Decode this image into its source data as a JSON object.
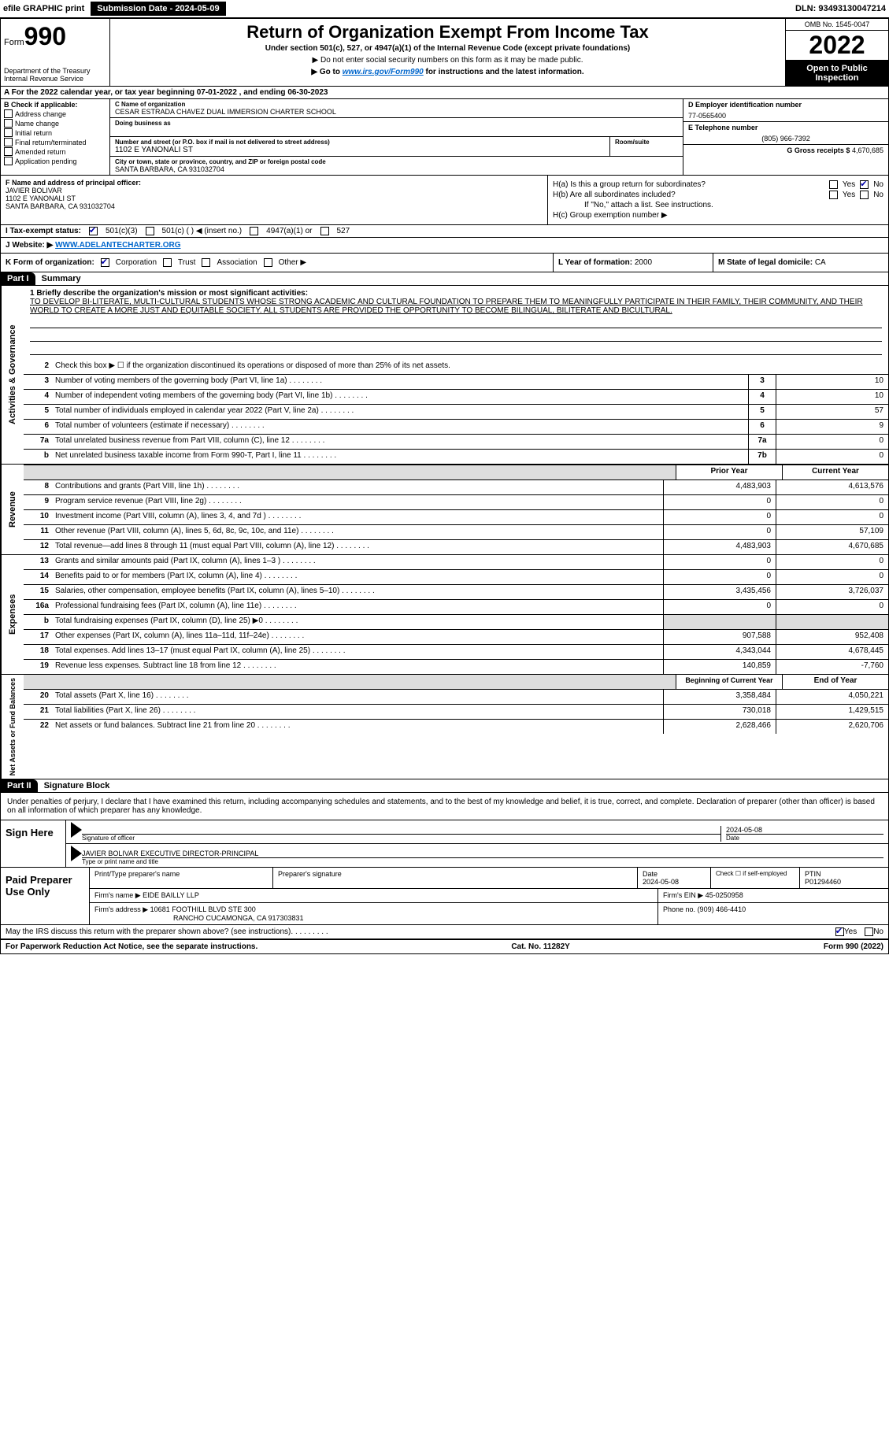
{
  "topbar": {
    "efile": "efile GRAPHIC print",
    "submission_label": "Submission Date - 2024-05-09",
    "dln": "DLN: 93493130047214"
  },
  "header": {
    "form_word": "Form",
    "form_num": "990",
    "dept": "Department of the Treasury",
    "irs": "Internal Revenue Service",
    "title": "Return of Organization Exempt From Income Tax",
    "sub": "Under section 501(c), 527, or 4947(a)(1) of the Internal Revenue Code (except private foundations)",
    "note1": "▶ Do not enter social security numbers on this form as it may be made public.",
    "note2_pre": "▶ Go to ",
    "note2_link": "www.irs.gov/Form990",
    "note2_post": " for instructions and the latest information.",
    "omb": "OMB No. 1545-0047",
    "year": "2022",
    "open": "Open to Public Inspection"
  },
  "period": {
    "a_text": "A For the 2022 calendar year, or tax year beginning 07-01-2022   , and ending 06-30-2023"
  },
  "boxB": {
    "label": "B Check if applicable:",
    "items": [
      "Address change",
      "Name change",
      "Initial return",
      "Final return/terminated",
      "Amended return",
      "Application pending"
    ]
  },
  "boxC": {
    "name_label": "C Name of organization",
    "name": "CESAR ESTRADA CHAVEZ DUAL IMMERSION CHARTER SCHOOL",
    "dba_label": "Doing business as",
    "addr_label": "Number and street (or P.O. box if mail is not delivered to street address)",
    "room_label": "Room/suite",
    "addr": "1102 E YANONALI ST",
    "city_label": "City or town, state or province, country, and ZIP or foreign postal code",
    "city": "SANTA BARBARA, CA  931032704"
  },
  "boxD": {
    "label": "D Employer identification number",
    "val": "77-0565400"
  },
  "boxE": {
    "label": "E Telephone number",
    "val": "(805) 966-7392"
  },
  "boxG": {
    "label": "G Gross receipts $",
    "val": "4,670,685"
  },
  "boxF": {
    "label": "F Name and address of principal officer:",
    "name": "JAVIER BOLIVAR",
    "addr1": "1102 E YANONALI ST",
    "addr2": "SANTA BARBARA, CA  931032704"
  },
  "boxH": {
    "a": "H(a)  Is this a group return for subordinates?",
    "a_yes": "Yes",
    "a_no": "No",
    "b": "H(b)  Are all subordinates included?",
    "b_yes": "Yes",
    "b_no": "No",
    "b_note": "If \"No,\" attach a list. See instructions.",
    "c": "H(c)  Group exemption number ▶"
  },
  "rowI": {
    "label": "I  Tax-exempt status:",
    "opt1": "501(c)(3)",
    "opt2": "501(c) (   ) ◀ (insert no.)",
    "opt3": "4947(a)(1) or",
    "opt4": "527"
  },
  "rowJ": {
    "label": "J  Website: ▶ ",
    "val": "WWW.ADELANTECHARTER.ORG"
  },
  "rowK": {
    "label": "K Form of organization:",
    "opts": [
      "Corporation",
      "Trust",
      "Association",
      "Other ▶"
    ]
  },
  "rowL": {
    "label": "L Year of formation: ",
    "val": "2000"
  },
  "rowM": {
    "label": "M State of legal domicile: ",
    "val": "CA"
  },
  "parts": {
    "p1": "Part I",
    "p1_title": "Summary",
    "p2": "Part II",
    "p2_title": "Signature Block"
  },
  "summary": {
    "line1_label": "1  Briefly describe the organization's mission or most significant activities:",
    "mission": "TO DEVELOP BI-LITERATE, MULTI-CULTURAL STUDENTS WHOSE STRONG ACADEMIC AND CULTURAL FOUNDATION TO PREPARE THEM TO MEANINGFULLY PARTICIPATE IN THEIR FAMILY, THEIR COMMUNITY, AND THEIR WORLD TO CREATE A MORE JUST AND EQUITABLE SOCIETY. ALL STUDENTS ARE PROVIDED THE OPPORTUNITY TO BECOME BILINGUAL, BILITERATE AND BICULTURAL.",
    "line2": "Check this box ▶ ☐  if the organization discontinued its operations or disposed of more than 25% of its net assets.",
    "lines_single": [
      {
        "n": "3",
        "t": "Number of voting members of the governing body (Part VI, line 1a)",
        "b": "3",
        "v": "10"
      },
      {
        "n": "4",
        "t": "Number of independent voting members of the governing body (Part VI, line 1b)",
        "b": "4",
        "v": "10"
      },
      {
        "n": "5",
        "t": "Total number of individuals employed in calendar year 2022 (Part V, line 2a)",
        "b": "5",
        "v": "57"
      },
      {
        "n": "6",
        "t": "Total number of volunteers (estimate if necessary)",
        "b": "6",
        "v": "9"
      },
      {
        "n": "7a",
        "t": "Total unrelated business revenue from Part VIII, column (C), line 12",
        "b": "7a",
        "v": "0"
      },
      {
        "n": "b",
        "t": "Net unrelated business taxable income from Form 990-T, Part I, line 11",
        "b": "7b",
        "v": "0"
      }
    ],
    "col_head_prior": "Prior Year",
    "col_head_current": "Current Year",
    "revenue": [
      {
        "n": "8",
        "t": "Contributions and grants (Part VIII, line 1h)",
        "p": "4,483,903",
        "c": "4,613,576"
      },
      {
        "n": "9",
        "t": "Program service revenue (Part VIII, line 2g)",
        "p": "0",
        "c": "0"
      },
      {
        "n": "10",
        "t": "Investment income (Part VIII, column (A), lines 3, 4, and 7d )",
        "p": "0",
        "c": "0"
      },
      {
        "n": "11",
        "t": "Other revenue (Part VIII, column (A), lines 5, 6d, 8c, 9c, 10c, and 11e)",
        "p": "0",
        "c": "57,109"
      },
      {
        "n": "12",
        "t": "Total revenue—add lines 8 through 11 (must equal Part VIII, column (A), line 12)",
        "p": "4,483,903",
        "c": "4,670,685"
      }
    ],
    "expenses": [
      {
        "n": "13",
        "t": "Grants and similar amounts paid (Part IX, column (A), lines 1–3 )",
        "p": "0",
        "c": "0"
      },
      {
        "n": "14",
        "t": "Benefits paid to or for members (Part IX, column (A), line 4)",
        "p": "0",
        "c": "0"
      },
      {
        "n": "15",
        "t": "Salaries, other compensation, employee benefits (Part IX, column (A), lines 5–10)",
        "p": "3,435,456",
        "c": "3,726,037"
      },
      {
        "n": "16a",
        "t": "Professional fundraising fees (Part IX, column (A), line 11e)",
        "p": "0",
        "c": "0"
      },
      {
        "n": "b",
        "t": "Total fundraising expenses (Part IX, column (D), line 25) ▶0",
        "p": "",
        "c": "",
        "shaded": true
      },
      {
        "n": "17",
        "t": "Other expenses (Part IX, column (A), lines 11a–11d, 11f–24e)",
        "p": "907,588",
        "c": "952,408"
      },
      {
        "n": "18",
        "t": "Total expenses. Add lines 13–17 (must equal Part IX, column (A), line 25)",
        "p": "4,343,044",
        "c": "4,678,445"
      },
      {
        "n": "19",
        "t": "Revenue less expenses. Subtract line 18 from line 12",
        "p": "140,859",
        "c": "-7,760"
      }
    ],
    "col_head_begin": "Beginning of Current Year",
    "col_head_end": "End of Year",
    "netassets": [
      {
        "n": "20",
        "t": "Total assets (Part X, line 16)",
        "p": "3,358,484",
        "c": "4,050,221"
      },
      {
        "n": "21",
        "t": "Total liabilities (Part X, line 26)",
        "p": "730,018",
        "c": "1,429,515"
      },
      {
        "n": "22",
        "t": "Net assets or fund balances. Subtract line 21 from line 20",
        "p": "2,628,466",
        "c": "2,620,706"
      }
    ]
  },
  "side_labels": {
    "ag": "Activities & Governance",
    "rev": "Revenue",
    "exp": "Expenses",
    "na": "Net Assets or Fund Balances"
  },
  "signature": {
    "penalty": "Under penalties of perjury, I declare that I have examined this return, including accompanying schedules and statements, and to the best of my knowledge and belief, it is true, correct, and complete. Declaration of preparer (other than officer) is based on all information of which preparer has any knowledge.",
    "sign_here": "Sign Here",
    "sig_officer": "Signature of officer",
    "sig_date_label": "Date",
    "sig_date": "2024-05-08",
    "officer_name": "JAVIER BOLIVAR EXECUTIVE DIRECTOR-PRINCIPAL",
    "officer_label": "Type or print name and title"
  },
  "preparer": {
    "title": "Paid Preparer Use Only",
    "h_name": "Print/Type preparer's name",
    "h_sig": "Preparer's signature",
    "h_date": "Date",
    "date": "2024-05-08",
    "h_check": "Check ☐ if self-employed",
    "h_ptin": "PTIN",
    "ptin": "P01294460",
    "firm_name_label": "Firm's name    ▶",
    "firm_name": "EIDE BAILLY LLP",
    "firm_ein_label": "Firm's EIN ▶",
    "firm_ein": "45-0250958",
    "firm_addr_label": "Firm's address ▶",
    "firm_addr1": "10681 FOOTHILL BLVD STE 300",
    "firm_addr2": "RANCHO CUCAMONGA, CA  917303831",
    "phone_label": "Phone no.",
    "phone": "(909) 466-4410"
  },
  "bottom": {
    "discuss": "May the IRS discuss this return with the preparer shown above? (see instructions)",
    "yes": "Yes",
    "no": "No"
  },
  "footer": {
    "left": "For Paperwork Reduction Act Notice, see the separate instructions.",
    "mid": "Cat. No. 11282Y",
    "right": "Form 990 (2022)"
  }
}
